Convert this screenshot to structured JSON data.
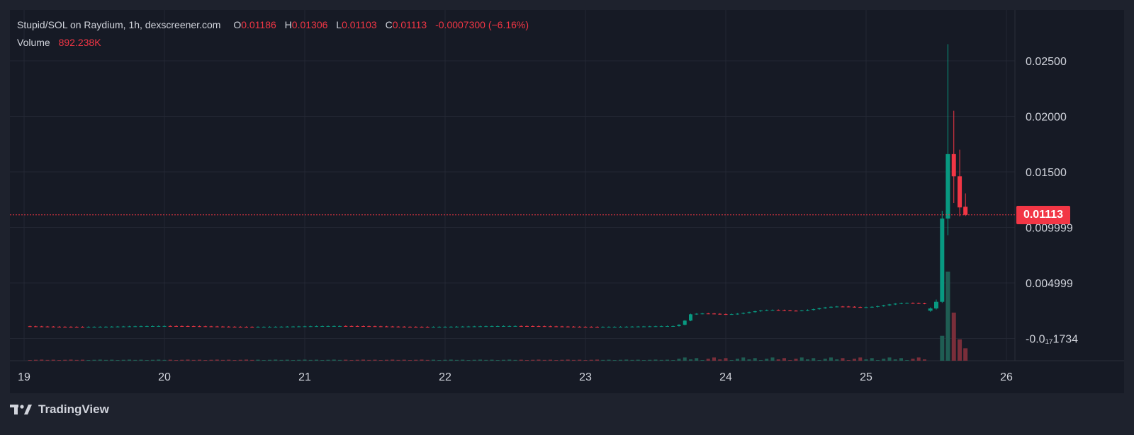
{
  "header": {
    "title": "Stupid/SOL on Raydium, 1h, dexscreener.com",
    "open_label": "O",
    "open": "0.01186",
    "high_label": "H",
    "high": "0.01306",
    "low_label": "L",
    "low": "0.01103",
    "close_label": "C",
    "close": "0.01113",
    "change": "-0.0007300 (−6.16%)",
    "volume_label": "Volume",
    "volume": "892.238K"
  },
  "price_tag": "0.01113",
  "brand": "TradingView",
  "colors": {
    "up": "#089981",
    "down": "#f23645",
    "volume_up": "#1f5d53",
    "volume_down": "#7a2e3a",
    "background": "#161a25",
    "frame": "#1e222d",
    "grid": "#232733",
    "text": "#d1d4dc"
  },
  "chart_data": {
    "type": "candlestick",
    "symbol": "Stupid/SOL",
    "interval": "1h",
    "y_ticks": [
      {
        "value": 0.025,
        "label": "0.02500"
      },
      {
        "value": 0.02,
        "label": "0.02000"
      },
      {
        "value": 0.015,
        "label": "0.01500"
      },
      {
        "value": 0.01,
        "label": "0.009999"
      },
      {
        "value": 0.005,
        "label": "0.004999"
      },
      {
        "value": -1.734e-19,
        "label": "-0.0₁₇1734"
      }
    ],
    "x_ticks": [
      "19",
      "20",
      "21",
      "22",
      "23",
      "24",
      "25",
      "26"
    ],
    "x_tick_days": [
      19,
      20,
      21,
      22,
      23,
      24,
      25,
      26
    ],
    "last_price": 0.01113,
    "grid": true,
    "ohlc_end": [
      {
        "day": 25.458,
        "o": 0.0025,
        "h": 0.0028,
        "l": 0.0024,
        "c": 0.0027
      },
      {
        "day": 25.5,
        "o": 0.0027,
        "h": 0.0035,
        "l": 0.0026,
        "c": 0.0033
      },
      {
        "day": 25.542,
        "o": 0.0033,
        "h": 0.0115,
        "l": 0.0032,
        "c": 0.0108
      },
      {
        "day": 25.583,
        "o": 0.0108,
        "h": 0.0265,
        "l": 0.0093,
        "c": 0.0166
      },
      {
        "day": 25.625,
        "o": 0.0166,
        "h": 0.0205,
        "l": 0.0122,
        "c": 0.0146
      },
      {
        "day": 25.667,
        "o": 0.0146,
        "h": 0.017,
        "l": 0.011,
        "c": 0.0118
      },
      {
        "day": 25.708,
        "o": 0.01186,
        "h": 0.01306,
        "l": 0.01103,
        "c": 0.01113
      }
    ],
    "volume_end": [
      {
        "day": 25.542,
        "v": 0.28,
        "dir": "up"
      },
      {
        "day": 25.583,
        "v": 1.0,
        "dir": "up"
      },
      {
        "day": 25.625,
        "v": 0.54,
        "dir": "down"
      },
      {
        "day": 25.667,
        "v": 0.24,
        "dir": "down"
      },
      {
        "day": 25.708,
        "v": 0.14,
        "dir": "down"
      }
    ]
  }
}
